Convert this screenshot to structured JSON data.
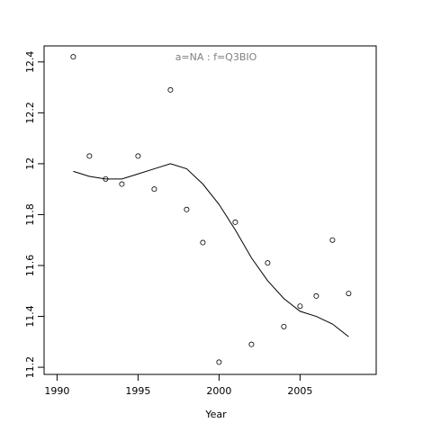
{
  "chart_data": {
    "type": "scatter",
    "title": "a=NA  :  f=Q3BIO",
    "x_label": "Year",
    "x": [
      1991,
      1992,
      1993,
      1994,
      1995,
      1996,
      1997,
      1998,
      1999,
      2000,
      2001,
      2002,
      2003,
      2004,
      2005,
      2006,
      2007,
      2008
    ],
    "series": [
      {
        "type": "scatter",
        "color": "#000000",
        "values": [
          12.42,
          12.03,
          11.94,
          11.92,
          12.03,
          11.9,
          12.29,
          11.82,
          11.69,
          11.22,
          11.77,
          11.29,
          11.61,
          11.36,
          11.44,
          11.48,
          11.7,
          11.49
        ]
      },
      {
        "type": "line",
        "color": "#000000",
        "values": [
          11.97,
          11.95,
          11.94,
          11.94,
          11.96,
          11.98,
          12.0,
          11.98,
          11.92,
          11.84,
          11.74,
          11.63,
          11.54,
          11.47,
          11.42,
          11.4,
          11.37,
          11.32
        ]
      }
    ],
    "xlim": [
      1989.2,
      2009.7
    ],
    "xticks": [
      1990,
      1995,
      2000,
      2005
    ],
    "ylim": [
      11.172,
      12.463
    ],
    "yticks": [
      11.2,
      11.4,
      11.6,
      11.8,
      12.0,
      12.2,
      12.4
    ],
    "title_color": "#808080"
  }
}
